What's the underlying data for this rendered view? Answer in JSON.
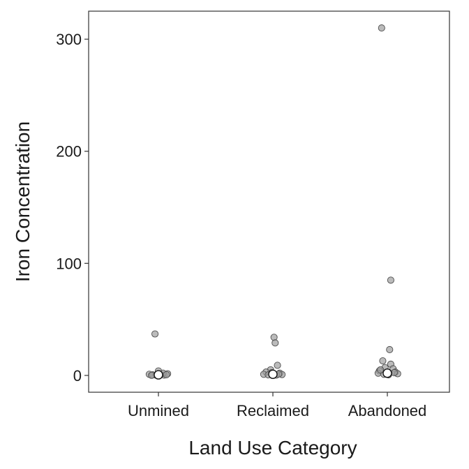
{
  "chart_data": {
    "type": "scatter",
    "title": "",
    "xlabel": "Land Use Category",
    "ylabel": "Iron Concentration",
    "categories": [
      "Unmined",
      "Reclaimed",
      "Abandoned"
    ],
    "ylim": [
      -15,
      325
    ],
    "yticks": [
      0,
      100,
      200,
      300
    ],
    "grid": false,
    "legend": "none",
    "point_fill": "#9e9e9e",
    "point_edge": "#4d4d4d",
    "mean_marker_fill": "#ffffff",
    "series": [
      {
        "category": "Unmined",
        "points": [
          {
            "dx": -0.03,
            "y": 37
          },
          {
            "dx": 0.0,
            "y": 4
          },
          {
            "dx": -0.08,
            "y": 1
          },
          {
            "dx": -0.05,
            "y": 0.5
          },
          {
            "dx": -0.02,
            "y": 0.2
          },
          {
            "dx": 0.02,
            "y": 0.8
          },
          {
            "dx": 0.05,
            "y": 0.3
          },
          {
            "dx": 0.08,
            "y": 1.5
          },
          {
            "dx": -0.06,
            "y": 0.1
          },
          {
            "dx": 0.04,
            "y": 2
          },
          {
            "dx": -0.01,
            "y": 1
          },
          {
            "dx": 0.07,
            "y": 0.6
          }
        ],
        "mean": 0.5
      },
      {
        "category": "Reclaimed",
        "points": [
          {
            "dx": 0.01,
            "y": 34
          },
          {
            "dx": 0.02,
            "y": 29
          },
          {
            "dx": 0.04,
            "y": 9
          },
          {
            "dx": -0.02,
            "y": 5
          },
          {
            "dx": -0.06,
            "y": 3
          },
          {
            "dx": 0.06,
            "y": 2
          },
          {
            "dx": -0.08,
            "y": 1
          },
          {
            "dx": 0.08,
            "y": 0.8
          },
          {
            "dx": -0.04,
            "y": 0.5
          },
          {
            "dx": 0.03,
            "y": 0.3
          },
          {
            "dx": -0.01,
            "y": 2.5
          },
          {
            "dx": 0.05,
            "y": 1.2
          }
        ],
        "mean": 1
      },
      {
        "category": "Abandoned",
        "points": [
          {
            "dx": -0.05,
            "y": 310
          },
          {
            "dx": 0.03,
            "y": 85
          },
          {
            "dx": 0.02,
            "y": 23
          },
          {
            "dx": -0.04,
            "y": 13
          },
          {
            "dx": 0.03,
            "y": 10
          },
          {
            "dx": -0.02,
            "y": 7
          },
          {
            "dx": 0.05,
            "y": 6
          },
          {
            "dx": -0.07,
            "y": 4
          },
          {
            "dx": 0.07,
            "y": 3
          },
          {
            "dx": -0.08,
            "y": 2
          },
          {
            "dx": 0.09,
            "y": 1.5
          },
          {
            "dx": -0.03,
            "y": 1
          },
          {
            "dx": 0.01,
            "y": 0.5
          },
          {
            "dx": 0.06,
            "y": 2.5
          },
          {
            "dx": -0.06,
            "y": 5
          }
        ],
        "mean": 2
      }
    ]
  }
}
